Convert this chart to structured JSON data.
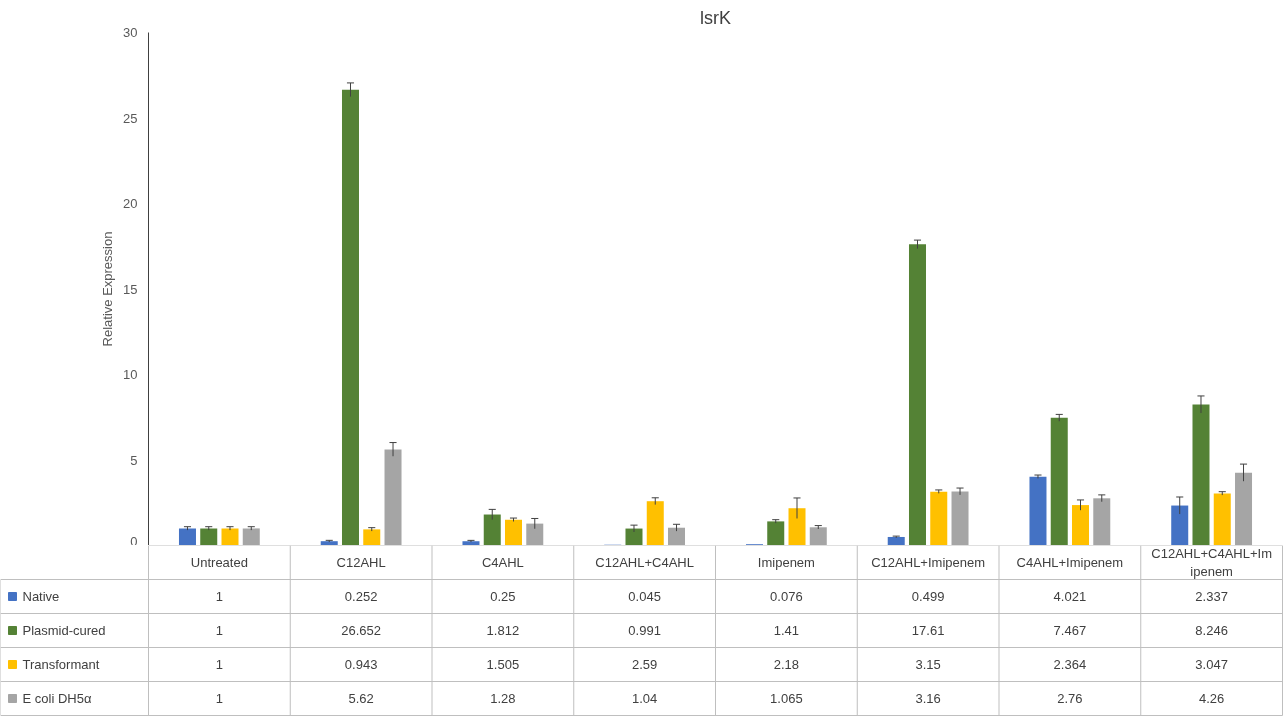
{
  "chart_data": {
    "type": "bar",
    "title": "lsrK",
    "ylabel": "Relative Expression",
    "categories": [
      "Untreated",
      "C12AHL",
      "C4AHL",
      "C12AHL+C4AHL",
      "Imipenem",
      "C12AHL+Imipenem",
      "C4AHL+Imipenem",
      "C12AHL+C4AHL+Imipenem"
    ],
    "series": [
      {
        "name": "Native",
        "color": "#4472c4",
        "values": [
          1,
          0.252,
          0.25,
          0.045,
          0.076,
          0.499,
          4.021,
          2.337
        ],
        "errors": [
          0.1,
          0.05,
          0.05,
          null,
          null,
          0.05,
          0.1,
          0.5
        ]
      },
      {
        "name": "Plasmid-cured",
        "color": "#548235",
        "values": [
          1,
          26.652,
          1.812,
          0.991,
          1.41,
          17.61,
          7.467,
          8.246
        ],
        "errors": [
          0.1,
          0.4,
          0.3,
          0.2,
          0.1,
          0.25,
          0.2,
          0.5
        ]
      },
      {
        "name": "Transformant",
        "color": "#ffc000",
        "values": [
          1,
          0.943,
          1.505,
          2.59,
          2.18,
          3.15,
          2.364,
          3.047
        ],
        "errors": [
          0.1,
          0.1,
          0.1,
          0.2,
          0.6,
          0.1,
          0.3,
          0.1
        ]
      },
      {
        "name": "E coli DH5α",
        "color": "#a5a5a5",
        "values": [
          1,
          5.62,
          1.28,
          1.04,
          1.065,
          3.16,
          2.76,
          4.26
        ],
        "errors": [
          0.1,
          0.4,
          0.3,
          0.2,
          0.1,
          0.2,
          0.2,
          0.5
        ]
      }
    ],
    "ylim": [
      0,
      30
    ],
    "yticks": [
      0,
      5,
      10,
      15,
      20,
      25,
      30
    ],
    "grid": false,
    "legend": "bottom",
    "data_labels": true
  }
}
